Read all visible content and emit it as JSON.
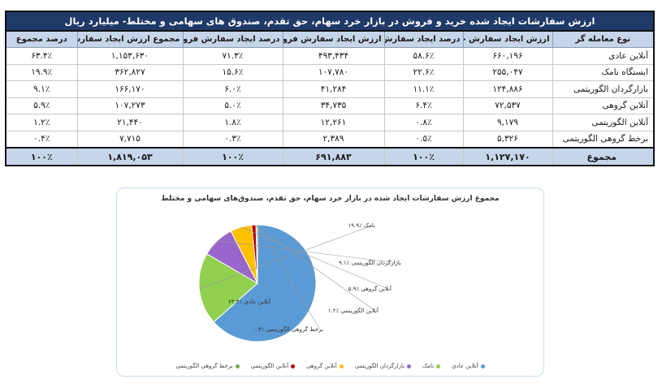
{
  "table": {
    "title": "ارزش سفارشات ایجاد شده خرید و فروش در بازار خرد سهام، حق تقدم، صندوق های سهامی و مختلط- میلیارد ریال",
    "headers": [
      "نوع معامله گر",
      "ارزش ایجاد سفارش خرید",
      "درصد ایجاد سفارش خرید",
      "ارزش ایجاد سفارش فروش",
      "درصد ایجاد سفارش فروش",
      "مجموع ارزش ایجاد سفارش",
      "درصد مجموع"
    ],
    "rows": [
      [
        "آنلاین عادی",
        "۶۶۰,۱۹۶",
        "۵۸.۶٪",
        "۴۹۳,۴۳۴",
        "۷۱.۳٪",
        "۱,۱۵۳,۶۳۰",
        "۶۳.۴٪"
      ],
      [
        "ایستگاه نامک",
        "۲۵۵,۰۴۷",
        "۲۲.۶٪",
        "۱۰۷,۷۸۰",
        "۱۵.۶٪",
        "۳۶۲,۸۲۷",
        "۱۹.۹٪"
      ],
      [
        "بازارگردان الگوریتمی",
        "۱۲۴,۸۸۶",
        "۱۱.۱٪",
        "۴۱,۲۸۴",
        "۶.۰٪",
        "۱۶۶,۱۷۰",
        "۹.۱٪"
      ],
      [
        "آنلاین گروهی",
        "۷۲,۵۳۷",
        "۶.۴٪",
        "۳۴,۷۳۵",
        "۵.۰٪",
        "۱۰۷,۲۷۳",
        "۵.۹٪"
      ],
      [
        "آنلاین الگوریتمی",
        "۹,۱۷۹",
        "۰.۸٪",
        "۱۲,۲۶۱",
        "۱.۸٪",
        "۲۱,۴۴۰",
        "۱.۲٪"
      ],
      [
        "برخط گروهی الگوریتمی",
        "۵,۳۲۶",
        "۰.۵٪",
        "۲,۳۸۹",
        "۰.۳٪",
        "۷,۷۱۵",
        "۰.۴٪"
      ]
    ],
    "total": [
      "مجموع",
      "۱,۱۲۷,۱۷۰",
      "۱۰۰٪",
      "۶۹۱,۸۸۳",
      "۱۰۰٪",
      "۱,۸۱۹,۰۵۳",
      "۱۰۰٪"
    ]
  },
  "chart_data": {
    "type": "pie",
    "title": "مجموع ارزش سفارشات ایجاد شده در بازار خرد سهام، حق تقدم، صندوق‌های سهامی و مختلط",
    "categories": [
      "آنلاین عادی",
      "نامک",
      "بازارگردان الگوریتمی",
      "آنلاین گروهی",
      "آنلاین الگوریتمی",
      "برخط گروهی الگوریتمی"
    ],
    "values": [
      63.4,
      19.9,
      9.1,
      5.9,
      1.2,
      0.4
    ],
    "slice_labels": [
      "آنلاین عادی ٪۶۳.۴",
      "نامک ٪۱۹.۹",
      "بازارگردان الگوریتمی ٪۹.۱",
      "آنلاین گروهی ٪۵.۹",
      "آنلاین الگوریتمی ٪۱.۲",
      "برخط گروهی الگوریتمی ٪۰.۴"
    ],
    "colors": [
      "#5b9bd5",
      "#92d050",
      "#9966cc",
      "#ffc000",
      "#c00000",
      "#70ad47"
    ],
    "legend_position": "bottom"
  }
}
